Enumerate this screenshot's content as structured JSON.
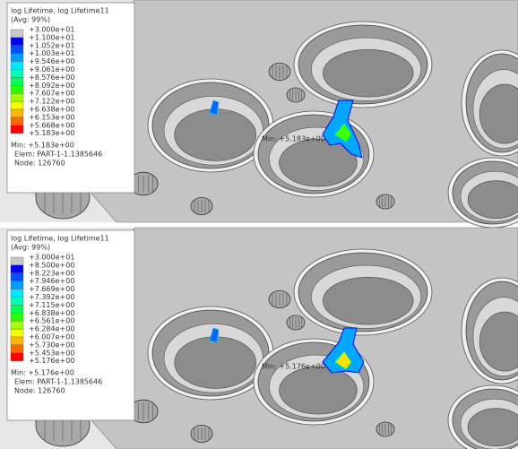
{
  "panels": [
    {
      "legend": {
        "title": "log Lifetime, log Lifetime11",
        "averaging": "(Avg: 99%)",
        "labels": [
          "+3.000e+01",
          "+1.100e+01",
          "+1.052e+01",
          "+1.003e+01",
          "+9.546e+00",
          "+9.061e+00",
          "+8.576e+00",
          "+8.092e+00",
          "+7.607e+00",
          "+7.122e+00",
          "+6.638e+00",
          "+6.153e+00",
          "+5.668e+00",
          "+5.183e+00"
        ],
        "min": "Min: +5.183e+00",
        "elem": "Elem: PART-1-1.1385646",
        "node": "Node: 126760"
      },
      "annotation": "Min: +5.183e+00"
    },
    {
      "legend": {
        "title": "log Lifetime, log Lifetime11",
        "averaging": "(Avg: 99%)",
        "labels": [
          "+3.000e+01",
          "+8.500e+00",
          "+8.223e+00",
          "+7.946e+00",
          "+7.669e+00",
          "+7.392e+00",
          "+7.115e+00",
          "+6.838e+00",
          "+6.561e+00",
          "+6.284e+00",
          "+6.007e+00",
          "+5.730e+00",
          "+5.453e+00",
          "+5.176e+00"
        ],
        "min": "Min: +5.176e+00",
        "elem": "Elem: PART-1-1.1385646",
        "node": "Node: 126760"
      },
      "annotation": "Min: +5.176e+00"
    }
  ]
}
